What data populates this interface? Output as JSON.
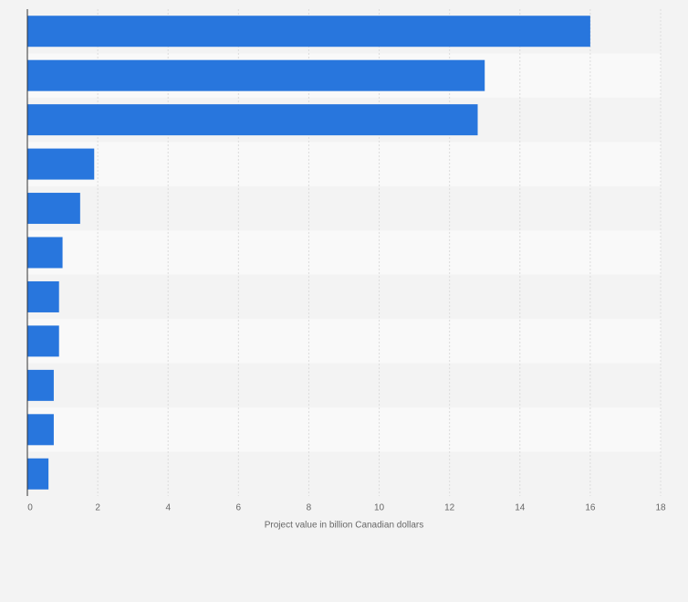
{
  "chart_data": {
    "type": "bar",
    "orientation": "horizontal",
    "categories": [
      null,
      null,
      null,
      null,
      null,
      null,
      null,
      null,
      null,
      null,
      null
    ],
    "values": [
      16,
      13,
      12.8,
      1.9,
      1.5,
      1.0,
      0.9,
      0.9,
      0.75,
      0.75,
      0.6
    ],
    "color": "#2876dd",
    "xlim": [
      0,
      18
    ],
    "xticks": [
      0,
      2,
      4,
      6,
      8,
      10,
      12,
      14,
      16,
      18
    ],
    "x_label": "Project value in billion Canadian dollars",
    "grid": true
  }
}
